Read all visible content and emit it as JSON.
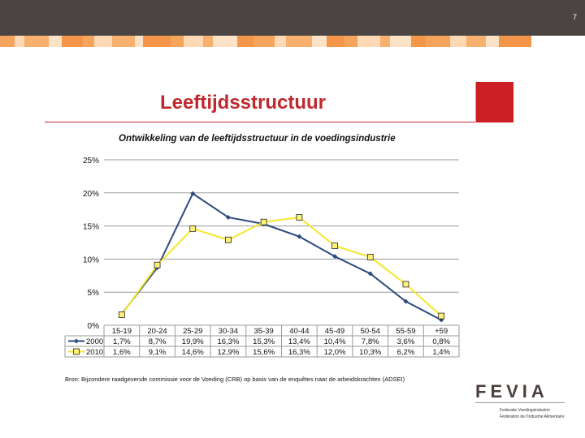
{
  "slide": {
    "page_number": "7",
    "title": "Leeftijdsstructuur",
    "source_note": "Bron: Bijzondere raadgevende commissie voor de Voeding (CRB) op basis van de enquêtes naar de arbeidskrachten (ADSEI)"
  },
  "colors": {
    "topbar": "#4a4442",
    "accent_red": "#cc1f25",
    "title_red": "#c0282d",
    "stripe": [
      "#f5a45c",
      "#fdd9b5",
      "#f7b06d",
      "#fce3c7",
      "#f4964a"
    ],
    "series_2000": "#2b4a7e",
    "series_2010": "#f5e62a"
  },
  "logo": {
    "text": "FEVIA",
    "line1": "Federatie Voedingsindustrie",
    "line2": "Fédération de l'Industrie Alimentaire"
  },
  "chart_data": {
    "type": "line",
    "title": "Ontwikkeling van de leeftijdsstructuur in de voedingsindustrie",
    "categories": [
      "15-19",
      "20-24",
      "25-29",
      "30-34",
      "35-39",
      "40-44",
      "45-49",
      "50-54",
      "55-59",
      "+59"
    ],
    "ylim": [
      0,
      25
    ],
    "yticks": [
      0,
      5,
      10,
      15,
      20,
      25
    ],
    "ytick_labels": [
      "0%",
      "5%",
      "10%",
      "15%",
      "20%",
      "25%"
    ],
    "grid": true,
    "series": [
      {
        "name": "2000",
        "values": [
          1.7,
          8.7,
          19.9,
          16.3,
          15.3,
          13.4,
          10.4,
          7.8,
          3.6,
          0.8
        ],
        "labels": [
          "1,7%",
          "8,7%",
          "19,9%",
          "16,3%",
          "15,3%",
          "13,4%",
          "10,4%",
          "7,8%",
          "3,6%",
          "0,8%"
        ],
        "color": "#2b4a7e",
        "marker": "diamond"
      },
      {
        "name": "2010",
        "values": [
          1.6,
          9.1,
          14.6,
          12.9,
          15.6,
          16.3,
          12.0,
          10.3,
          6.2,
          1.4
        ],
        "labels": [
          "1,6%",
          "9,1%",
          "14,6%",
          "12,9%",
          "15,6%",
          "16,3%",
          "12,0%",
          "10,3%",
          "6,2%",
          "1,4%"
        ],
        "color": "#f5e62a",
        "marker": "square"
      }
    ]
  }
}
